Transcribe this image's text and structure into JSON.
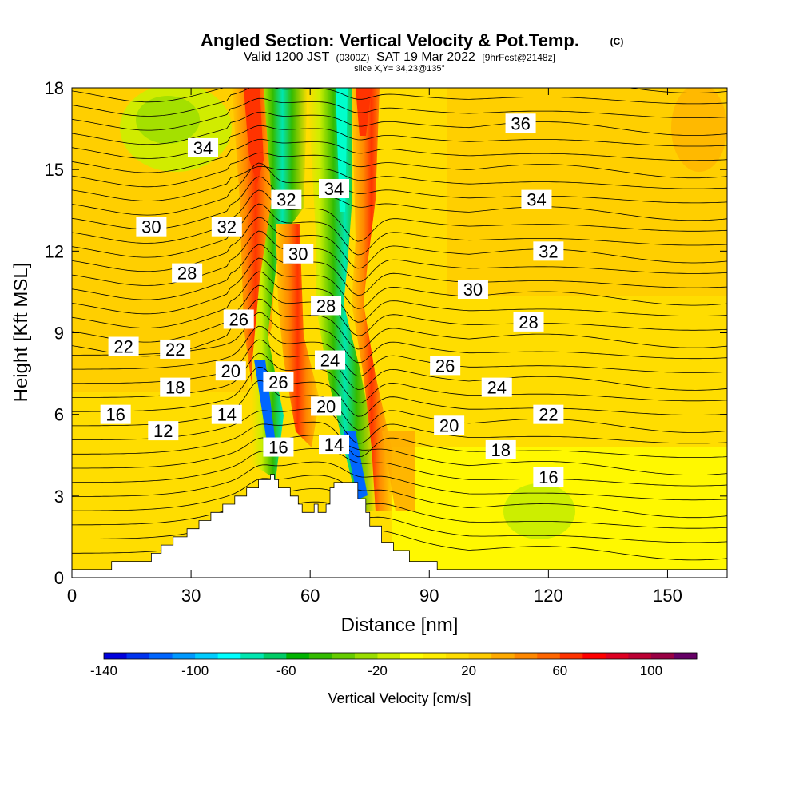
{
  "chart_data": {
    "type": "heatmap",
    "title_main": "Angled Section: Vertical Velocity & Pot.Temp.",
    "title_mark": "(C)",
    "subtitle": {
      "valid_a": "Valid 1200 JST",
      "valid_b": "(0300Z)",
      "valid_c": "SAT 19 Mar 2022",
      "valid_d": "[9hrFcst@2148z]"
    },
    "slice_label": "slice X,Y= 34,23@135°",
    "xlabel": "Distance [nm]",
    "ylabel": "Height [Kft MSL]",
    "xlim": [
      0,
      165
    ],
    "ylim": [
      0,
      18
    ],
    "x_ticks": [
      "0",
      "30",
      "60",
      "90",
      "120",
      "150"
    ],
    "y_ticks": [
      "0",
      "3",
      "6",
      "9",
      "12",
      "15",
      "18"
    ],
    "colorbar": {
      "label": "Vertical Velocity [cm/s]",
      "range": [
        -140,
        120
      ],
      "ticks": [
        "-140",
        "-100",
        "-60",
        "-20",
        "20",
        "60",
        "100"
      ],
      "colors": [
        "#0000dd",
        "#0033ee",
        "#0066ff",
        "#0099ff",
        "#00ccff",
        "#00ffff",
        "#00e6b0",
        "#00cc66",
        "#00b300",
        "#33bb00",
        "#66cc00",
        "#99dd00",
        "#ccee00",
        "#ffff00",
        "#ffee00",
        "#ffdd00",
        "#ffcc00",
        "#ffaa00",
        "#ff8800",
        "#ff6600",
        "#ff3300",
        "#ff0000",
        "#dd0022",
        "#bb0033",
        "#990044",
        "#660066"
      ]
    },
    "terrain": [
      [
        0,
        0.3
      ],
      [
        10,
        0.3
      ],
      [
        10,
        0.6
      ],
      [
        20,
        0.6
      ],
      [
        20,
        0.9
      ],
      [
        22.5,
        0.9
      ],
      [
        22.5,
        1.2
      ],
      [
        25.5,
        1.2
      ],
      [
        25.5,
        1.5
      ],
      [
        29,
        1.5
      ],
      [
        29,
        1.8
      ],
      [
        32,
        1.8
      ],
      [
        32,
        2.1
      ],
      [
        35,
        2.1
      ],
      [
        35,
        2.4
      ],
      [
        38,
        2.4
      ],
      [
        38,
        2.7
      ],
      [
        41,
        2.7
      ],
      [
        41,
        3.0
      ],
      [
        44,
        3.0
      ],
      [
        44,
        3.3
      ],
      [
        47,
        3.3
      ],
      [
        47,
        3.6
      ],
      [
        50,
        3.6
      ],
      [
        50,
        3.8
      ],
      [
        51,
        3.8
      ],
      [
        51,
        3.6
      ],
      [
        52,
        3.6
      ],
      [
        52,
        3.3
      ],
      [
        55,
        3.3
      ],
      [
        55,
        3.0
      ],
      [
        57,
        3.0
      ],
      [
        57,
        2.7
      ],
      [
        58,
        2.7
      ],
      [
        58,
        2.4
      ],
      [
        61,
        2.4
      ],
      [
        61,
        2.7
      ],
      [
        62,
        2.7
      ],
      [
        62,
        2.4
      ],
      [
        64,
        2.4
      ],
      [
        64,
        2.7
      ],
      [
        65,
        2.7
      ],
      [
        65,
        3.3
      ],
      [
        66,
        3.3
      ],
      [
        66,
        3.5
      ],
      [
        72,
        3.5
      ],
      [
        72,
        2.9
      ],
      [
        74,
        2.9
      ],
      [
        74,
        2.4
      ],
      [
        75,
        2.4
      ],
      [
        75,
        1.9
      ],
      [
        78,
        1.9
      ],
      [
        78,
        1.3
      ],
      [
        81,
        1.3
      ],
      [
        81,
        1.0
      ],
      [
        85,
        1.0
      ],
      [
        85,
        0.6
      ],
      [
        92,
        0.6
      ],
      [
        92,
        0.3
      ],
      [
        165,
        0.3
      ]
    ],
    "contour_labels": [
      {
        "x": 33,
        "y": 15.8,
        "text": "34"
      },
      {
        "x": 20,
        "y": 12.9,
        "text": "30"
      },
      {
        "x": 39,
        "y": 12.9,
        "text": "32"
      },
      {
        "x": 54,
        "y": 13.9,
        "text": "32"
      },
      {
        "x": 66,
        "y": 14.3,
        "text": "34"
      },
      {
        "x": 57,
        "y": 11.9,
        "text": "30"
      },
      {
        "x": 29,
        "y": 11.2,
        "text": "28"
      },
      {
        "x": 42,
        "y": 9.5,
        "text": "26"
      },
      {
        "x": 64,
        "y": 10.0,
        "text": "28"
      },
      {
        "x": 13,
        "y": 8.5,
        "text": "22"
      },
      {
        "x": 26,
        "y": 8.4,
        "text": "22"
      },
      {
        "x": 40,
        "y": 7.6,
        "text": "20"
      },
      {
        "x": 65,
        "y": 8.0,
        "text": "24"
      },
      {
        "x": 52,
        "y": 7.2,
        "text": "26"
      },
      {
        "x": 26,
        "y": 7.0,
        "text": "18"
      },
      {
        "x": 64,
        "y": 6.3,
        "text": "20"
      },
      {
        "x": 11,
        "y": 6.0,
        "text": "16"
      },
      {
        "x": 39,
        "y": 6.0,
        "text": "14"
      },
      {
        "x": 23,
        "y": 5.4,
        "text": "12"
      },
      {
        "x": 52,
        "y": 4.8,
        "text": "16"
      },
      {
        "x": 66,
        "y": 4.9,
        "text": "14"
      },
      {
        "x": 113,
        "y": 16.7,
        "text": "36"
      },
      {
        "x": 117,
        "y": 13.9,
        "text": "34"
      },
      {
        "x": 120,
        "y": 12.0,
        "text": "32"
      },
      {
        "x": 101,
        "y": 10.6,
        "text": "30"
      },
      {
        "x": 115,
        "y": 9.4,
        "text": "28"
      },
      {
        "x": 94,
        "y": 7.8,
        "text": "26"
      },
      {
        "x": 107,
        "y": 7.0,
        "text": "24"
      },
      {
        "x": 120,
        "y": 6.0,
        "text": "22"
      },
      {
        "x": 95,
        "y": 5.6,
        "text": "20"
      },
      {
        "x": 108,
        "y": 4.7,
        "text": "18"
      },
      {
        "x": 120,
        "y": 3.7,
        "text": "16"
      }
    ]
  }
}
